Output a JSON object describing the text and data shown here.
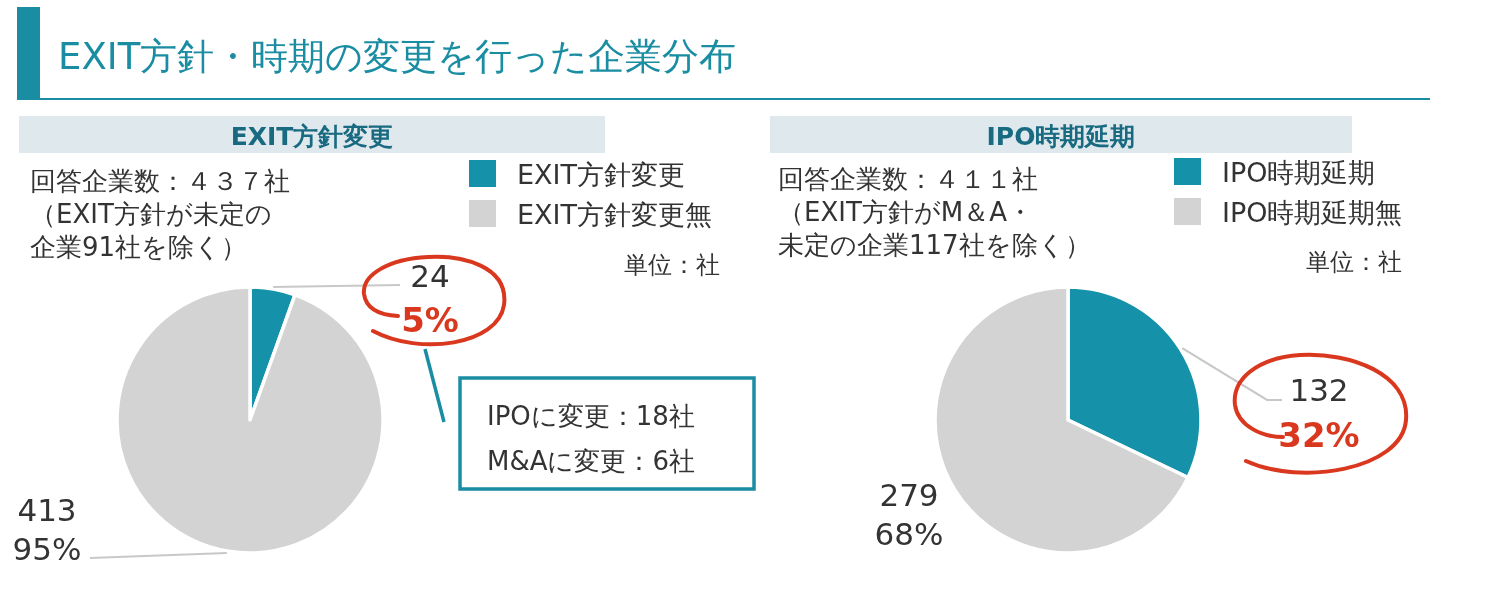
{
  "chart_data": [
    {
      "type": "pie",
      "title": "EXIT方針・時期の変更を行った企業分布",
      "subtitle": "EXIT方針変更",
      "categories": [
        "EXIT方針変更",
        "EXIT方針変更無"
      ],
      "values": [
        24,
        413
      ],
      "colors": [
        "#1591a9",
        "#d3d3d3"
      ],
      "value_labels": [
        "24\n5%",
        "413\n95%"
      ],
      "legend": "top right",
      "annotations": [
        "回答企業数：４３７社",
        "（EXIT方針が未定の企業91社を除く）",
        "単位：社",
        "IPOに変更：18社",
        "M&Aに変更：6社"
      ]
    },
    {
      "type": "pie",
      "subtitle": "IPO時期延期",
      "categories": [
        "IPO時期延期",
        "IPO時期延期無"
      ],
      "values": [
        132,
        279
      ],
      "colors": [
        "#1591a9",
        "#d3d3d3"
      ],
      "value_labels": [
        "132\n32%",
        "279\n68%"
      ],
      "legend": "top right",
      "annotations": [
        "回答企業数：４１１社",
        "（EXIT方針がM＆A・未定の企業117社を除く）",
        "単位：社"
      ]
    }
  ]
}
